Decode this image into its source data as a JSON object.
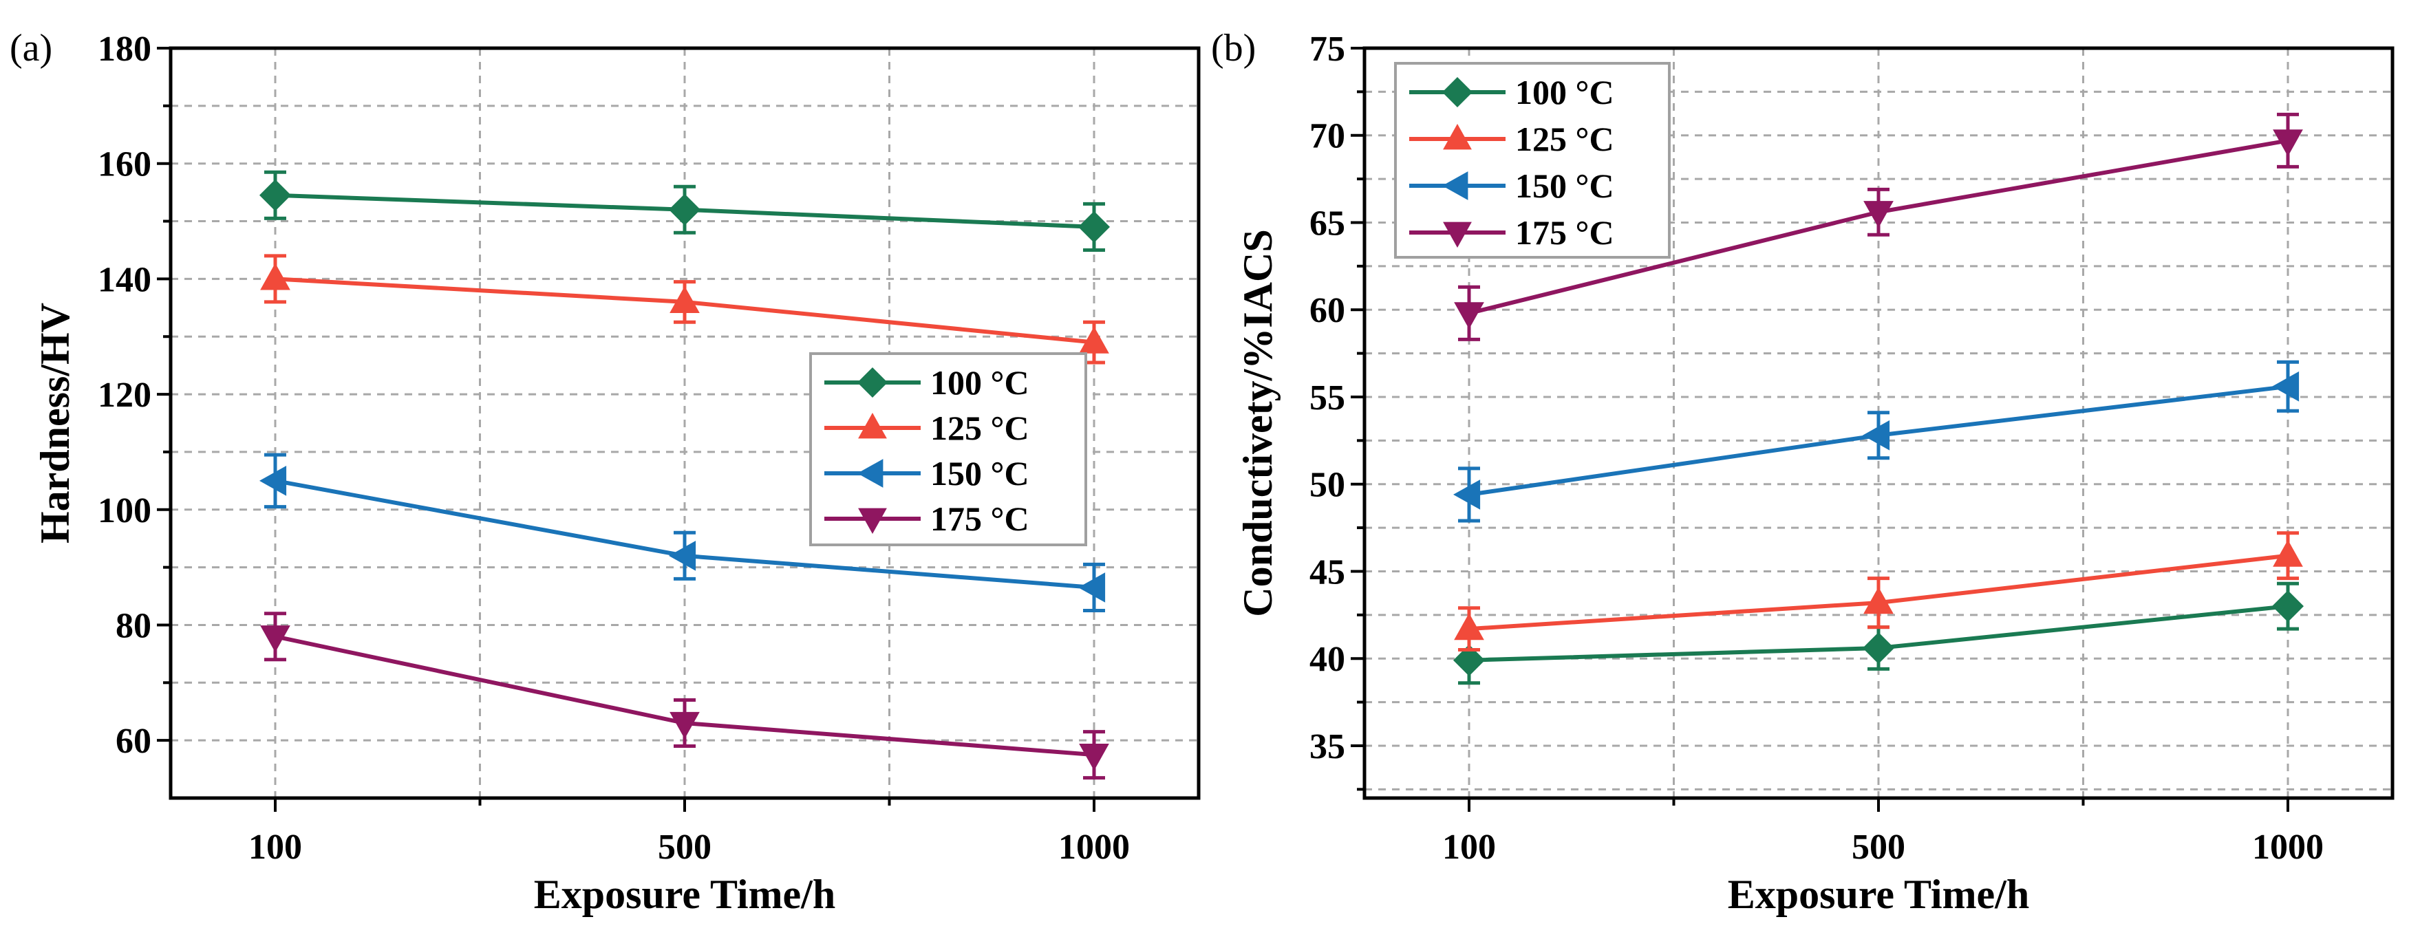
{
  "colors": {
    "series_100": "#1a7a52",
    "series_125": "#f14a3a",
    "series_150": "#1a74b8",
    "series_175": "#8f1660",
    "grid": "#a8a8a8",
    "legend_border": "#a0a0a0"
  },
  "chart_data": [
    {
      "type": "line",
      "panel_label": "(a)",
      "xlabel": "Exposure Time/h",
      "ylabel": "Hardness/HV",
      "categories": [
        "100",
        "500",
        "1000"
      ],
      "ylim": [
        50,
        180
      ],
      "yticks": [
        60,
        80,
        100,
        120,
        140,
        160,
        180
      ],
      "grid": true,
      "legend_position": "center-right",
      "series": [
        {
          "name": "100 °C",
          "marker": "diamond",
          "color_key": "series_100",
          "values": [
            154.5,
            152,
            149
          ],
          "errors": [
            4,
            4,
            4
          ]
        },
        {
          "name": "125 °C",
          "marker": "triangle-up",
          "color_key": "series_125",
          "values": [
            140,
            136,
            129
          ],
          "errors": [
            4,
            3.5,
            3.5
          ]
        },
        {
          "name": "150 °C",
          "marker": "triangle-left",
          "color_key": "series_150",
          "values": [
            105,
            92,
            86.5
          ],
          "errors": [
            4.5,
            4,
            4
          ]
        },
        {
          "name": "175 °C",
          "marker": "triangle-down",
          "color_key": "series_175",
          "values": [
            78,
            63,
            57.5
          ],
          "errors": [
            4,
            4,
            4
          ]
        }
      ]
    },
    {
      "type": "line",
      "panel_label": "(b)",
      "xlabel": "Exposure Time/h",
      "ylabel": "Conductivety/%IACS",
      "categories": [
        "100",
        "500",
        "1000"
      ],
      "ylim": [
        32,
        75
      ],
      "yticks": [
        35,
        40,
        45,
        50,
        55,
        60,
        65,
        70,
        75
      ],
      "grid": true,
      "legend_position": "top-left",
      "series": [
        {
          "name": "100 °C",
          "marker": "diamond",
          "color_key": "series_100",
          "values": [
            39.9,
            40.6,
            43.0
          ],
          "errors": [
            1.3,
            1.2,
            1.3
          ]
        },
        {
          "name": "125 °C",
          "marker": "triangle-up",
          "color_key": "series_125",
          "values": [
            41.7,
            43.2,
            45.9
          ],
          "errors": [
            1.2,
            1.4,
            1.3
          ]
        },
        {
          "name": "150 °C",
          "marker": "triangle-left",
          "color_key": "series_150",
          "values": [
            49.4,
            52.8,
            55.6
          ],
          "errors": [
            1.5,
            1.3,
            1.4
          ]
        },
        {
          "name": "175 °C",
          "marker": "triangle-down",
          "color_key": "series_175",
          "values": [
            59.8,
            65.6,
            69.7
          ],
          "errors": [
            1.5,
            1.3,
            1.5
          ]
        }
      ]
    }
  ]
}
